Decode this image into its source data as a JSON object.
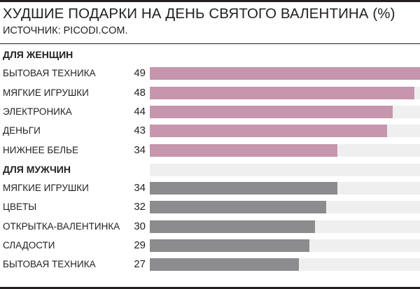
{
  "chart_data": {
    "type": "bar",
    "orientation": "horizontal",
    "title": "ХУДШИЕ ПОДАРКИ НА ДЕНЬ СВЯТОГО ВАЛЕНТИНА (%)",
    "source": "ИСТОЧНИК: PICODI.COM.",
    "xlim": [
      0,
      49
    ],
    "groups": [
      {
        "name": "ДЛЯ ЖЕНЩИН",
        "color": "#c596ad",
        "categories": [
          "БЫТОВАЯ ТЕХНИКА",
          "МЯГКИЕ ИГРУШКИ",
          "ЭЛЕКТРОНИКА",
          "ДЕНЬГИ",
          "НИЖНЕЕ БЕЛЬЕ"
        ],
        "values": [
          49,
          48,
          44,
          43,
          34
        ]
      },
      {
        "name": "ДЛЯ МУЖЧИН",
        "color": "#8c8b8d",
        "categories": [
          "МЯГКИЕ ИГРУШКИ",
          "ЦВЕТЫ",
          "ОТКРЫТКА-ВАЛЕНТИНКА",
          "СЛАДОСТИ",
          "БЫТОВАЯ ТЕХНИКА"
        ],
        "values": [
          34,
          32,
          30,
          29,
          27
        ]
      }
    ]
  },
  "colors": {
    "track": "#f0eff0",
    "text": "#231f20"
  }
}
